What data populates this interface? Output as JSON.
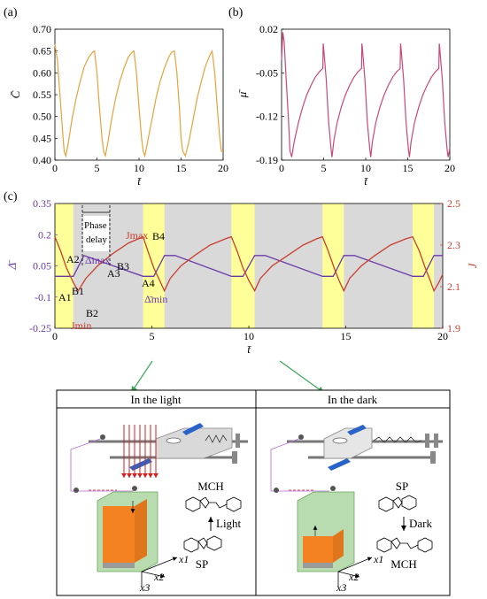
{
  "panels": {
    "a_label": "(a)",
    "b_label": "(b)",
    "c_label": "(c)"
  },
  "chart_data": [
    {
      "panel": "(a)",
      "type": "line",
      "ylabel": "C̄",
      "xlabel": "t̄",
      "xlim": [
        0,
        20
      ],
      "ylim": [
        0.4,
        0.7
      ],
      "xticks": [
        "0",
        "5",
        "10",
        "15",
        "20"
      ],
      "yticks": [
        "0.40",
        "0.45",
        "0.50",
        "0.55",
        "0.60",
        "0.65",
        "0.70"
      ],
      "line_color": "#e6a23c",
      "series": [
        {
          "values": {
            "x": [
              0,
              0.3,
              0.6,
              0.9,
              1.1,
              1.3,
              1.6,
              2.0,
              2.5,
              3.0,
              3.5,
              4.0,
              4.5,
              4.7,
              5.0,
              5.3,
              5.6,
              5.8,
              6.0,
              6.3,
              6.7,
              7.2,
              7.7,
              8.2,
              8.7,
              9.2,
              9.4,
              9.7,
              10.0,
              10.3,
              10.5,
              10.7,
              11.0,
              11.5,
              12.0,
              12.5,
              13.0,
              13.5,
              13.9,
              14.2,
              14.5,
              14.8,
              15.0,
              15.2,
              15.5,
              15.9,
              16.4,
              16.9,
              17.4,
              17.9,
              18.4,
              18.7,
              19.0,
              19.3,
              19.6,
              19.8,
              20.0
            ],
            "y": [
              0.665,
              0.63,
              0.55,
              0.47,
              0.42,
              0.41,
              0.44,
              0.49,
              0.54,
              0.58,
              0.615,
              0.635,
              0.648,
              0.65,
              0.6,
              0.52,
              0.45,
              0.42,
              0.41,
              0.44,
              0.49,
              0.54,
              0.58,
              0.61,
              0.635,
              0.648,
              0.65,
              0.6,
              0.52,
              0.45,
              0.42,
              0.41,
              0.44,
              0.49,
              0.54,
              0.58,
              0.61,
              0.635,
              0.648,
              0.65,
              0.6,
              0.52,
              0.45,
              0.42,
              0.41,
              0.44,
              0.49,
              0.54,
              0.58,
              0.615,
              0.64,
              0.65,
              0.6,
              0.52,
              0.45,
              0.42,
              0.42
            ]
          }
        }
      ]
    },
    {
      "panel": "(b)",
      "type": "line",
      "ylabel": "μ̄",
      "xlabel": "t̄",
      "xlim": [
        0,
        20
      ],
      "ylim": [
        -0.19,
        0.02
      ],
      "xticks": [
        "0",
        "5",
        "10",
        "15",
        "20"
      ],
      "yticks": [
        "0.02",
        "-0.05",
        "-0.12",
        "-0.19"
      ],
      "line_color": "#c9477a",
      "series": [
        {
          "values": {
            "x": [
              0,
              0.15,
              0.3,
              0.5,
              0.8,
              1.0,
              1.2,
              1.5,
              2.0,
              2.5,
              3.0,
              3.5,
              4.0,
              4.5,
              4.9,
              4.95,
              5.0,
              5.3,
              5.6,
              5.9,
              6.0,
              6.2,
              6.6,
              7.1,
              7.6,
              8.1,
              8.6,
              9.1,
              9.5,
              9.55,
              9.6,
              9.9,
              10.2,
              10.5,
              10.6,
              10.8,
              11.2,
              11.7,
              12.2,
              12.7,
              13.2,
              13.7,
              14.1,
              14.15,
              14.2,
              14.5,
              14.8,
              15.1,
              15.2,
              15.4,
              15.8,
              16.3,
              16.8,
              17.3,
              17.8,
              18.3,
              18.7,
              18.75,
              18.8,
              19.1,
              19.4,
              19.7,
              19.8,
              20.0
            ],
            "y": [
              -0.03,
              0.015,
              0.0,
              -0.05,
              -0.12,
              -0.175,
              -0.185,
              -0.16,
              -0.13,
              -0.105,
              -0.085,
              -0.07,
              -0.057,
              -0.048,
              -0.043,
              -0.003,
              -0.01,
              -0.06,
              -0.13,
              -0.175,
              -0.185,
              -0.16,
              -0.13,
              -0.105,
              -0.085,
              -0.07,
              -0.057,
              -0.048,
              -0.043,
              -0.003,
              -0.01,
              -0.06,
              -0.13,
              -0.175,
              -0.185,
              -0.16,
              -0.13,
              -0.105,
              -0.085,
              -0.07,
              -0.057,
              -0.048,
              -0.043,
              -0.003,
              -0.01,
              -0.06,
              -0.13,
              -0.175,
              -0.185,
              -0.16,
              -0.13,
              -0.105,
              -0.085,
              -0.07,
              -0.057,
              -0.048,
              -0.043,
              -0.003,
              -0.01,
              -0.06,
              -0.13,
              -0.175,
              -0.185,
              -0.17
            ]
          }
        }
      ]
    },
    {
      "panel": "(c)",
      "type": "line",
      "xlabel": "t̄",
      "ylabel_left": "Δ̄",
      "ylabel_right": "J",
      "xlim": [
        0,
        20
      ],
      "ylim_left": [
        -0.25,
        0.35
      ],
      "ylim_right": [
        1.9,
        2.5
      ],
      "xticks": [
        "0",
        "5",
        "10",
        "15",
        "20"
      ],
      "yticks_left": [
        "0.35",
        "0.2",
        "0.05",
        "-0.1",
        "-0.25"
      ],
      "yticks_right": [
        "2.5",
        "2.3",
        "2.1",
        "1.9"
      ],
      "light_color": "#ffff99",
      "dark_color": "#d9d9d9",
      "light_intervals": [
        [
          0,
          0.95
        ],
        [
          4.55,
          5.65
        ],
        [
          9.1,
          10.3
        ],
        [
          13.8,
          14.9
        ],
        [
          18.45,
          19.55
        ]
      ],
      "series": [
        {
          "name": "Δ̄",
          "color": "#6a3aa8",
          "values": {
            "x": [
              0,
              0.95,
              1.5,
              1.5,
              4.55,
              4.55,
              5.1,
              5.65,
              6.2,
              6.2,
              9.1,
              9.1,
              9.7,
              10.3,
              10.85,
              10.85,
              13.8,
              13.8,
              14.35,
              14.9,
              15.45,
              15.45,
              18.45,
              18.45,
              19.0,
              19.55,
              20.0
            ],
            "y": [
              0.0,
              0.0,
              0.1,
              0.1,
              0.0,
              0.0,
              0.0,
              0.1,
              0.1,
              0.1,
              0.0,
              0.0,
              0.0,
              0.1,
              0.1,
              0.1,
              0.0,
              0.0,
              0.0,
              0.1,
              0.1,
              0.1,
              0.0,
              0.0,
              0.0,
              0.1,
              0.1
            ]
          }
        },
        {
          "name": "J",
          "color": "#c8402f",
          "values": {
            "x": [
              0,
              0.3,
              0.6,
              0.95,
              1.2,
              1.6,
              2.2,
              3.0,
              3.8,
              4.55,
              4.8,
              5.1,
              5.4,
              5.65,
              5.95,
              6.5,
              7.2,
              8.0,
              8.8,
              9.1,
              9.4,
              9.7,
              10.0,
              10.3,
              10.6,
              11.2,
              12.0,
              12.8,
              13.5,
              13.8,
              14.1,
              14.4,
              14.65,
              14.9,
              15.2,
              15.8,
              16.5,
              17.3,
              18.1,
              18.45,
              18.8,
              19.1,
              19.35,
              19.55,
              19.8,
              20.0
            ],
            "y": [
              2.34,
              2.27,
              2.19,
              2.12,
              2.08,
              2.14,
              2.2,
              2.26,
              2.31,
              2.34,
              2.27,
              2.19,
              2.13,
              2.08,
              2.14,
              2.2,
              2.25,
              2.3,
              2.33,
              2.34,
              2.27,
              2.19,
              2.13,
              2.08,
              2.14,
              2.2,
              2.25,
              2.3,
              2.33,
              2.34,
              2.27,
              2.19,
              2.13,
              2.08,
              2.14,
              2.2,
              2.25,
              2.3,
              2.33,
              2.34,
              2.27,
              2.19,
              2.13,
              2.08,
              2.12,
              2.16
            ]
          }
        }
      ],
      "annotations": {
        "phase_delay_1": "Phase",
        "phase_delay_2": "delay",
        "A1": "A1",
        "B1": "B1",
        "B2": "B2",
        "A2": "A2",
        "A3": "A3",
        "B3": "B3",
        "A4": "A4",
        "B4": "B4",
        "delta_max": "Δ̄max",
        "delta_min": "Δ̄min",
        "J_max": "Jmax",
        "J_min": "Jmin"
      }
    }
  ],
  "schematic": {
    "light_title": "In the light",
    "dark_title": "In the dark",
    "light_molecule_top": "MCH",
    "light_arrow_label": "Light",
    "light_molecule_bottom": "SP",
    "dark_molecule_top": "SP",
    "dark_arrow_label": "Dark",
    "dark_molecule_bottom": "MCH",
    "axis_x1": "x1",
    "axis_x2": "x2",
    "axis_x3": "x3"
  }
}
